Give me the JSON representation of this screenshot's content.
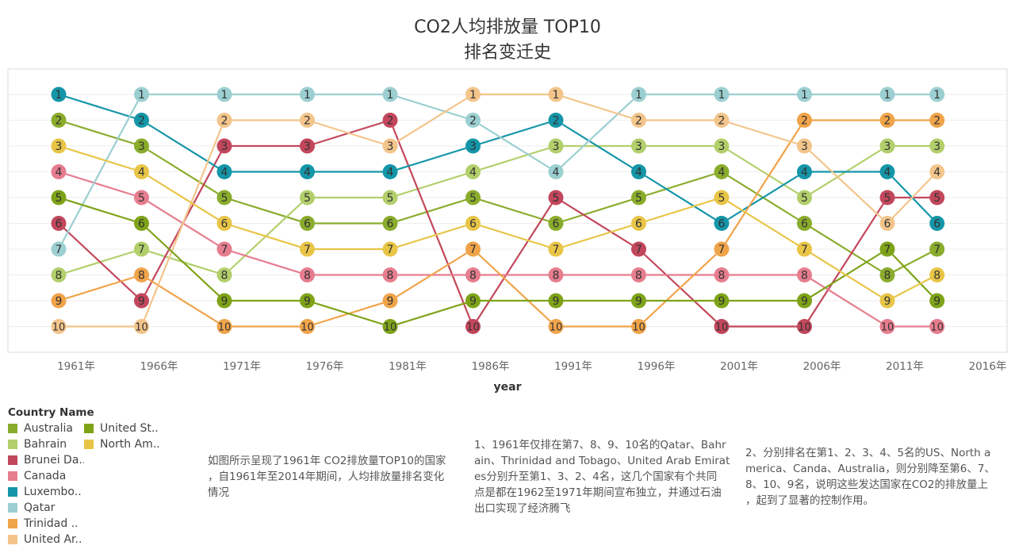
{
  "chart_data": {
    "type": "line",
    "title_line1": "CO2人均排放量 TOP10",
    "title_line2": "排名变迁史",
    "xlabel": "year",
    "x_ticks": [
      "1961年",
      "1966年",
      "1971年",
      "1976年",
      "1981年",
      "1986年",
      "1991年",
      "1996年",
      "2001年",
      "2006年",
      "2011年",
      "2016年"
    ],
    "years": [
      1961,
      1966,
      1971,
      1976,
      1981,
      1986,
      1991,
      1996,
      2001,
      2006,
      2011,
      2014
    ],
    "y_range": [
      1,
      10
    ],
    "y_reversed": true,
    "grid": true,
    "series": [
      {
        "name": "Australia",
        "color": "#8aac2c",
        "ranks": [
          2,
          3,
          5,
          6,
          6,
          5,
          6,
          5,
          4,
          6,
          8,
          7
        ]
      },
      {
        "name": "Bahrain",
        "color": "#b2cf6b",
        "ranks": [
          8,
          7,
          8,
          5,
          5,
          4,
          3,
          3,
          3,
          5,
          3,
          3
        ]
      },
      {
        "name": "Brunei Da..",
        "color": "#c2475c",
        "ranks": [
          6,
          9,
          3,
          3,
          2,
          10,
          5,
          7,
          10,
          10,
          5,
          5
        ]
      },
      {
        "name": "Canada",
        "color": "#e67d8e",
        "ranks": [
          4,
          5,
          7,
          8,
          8,
          8,
          8,
          8,
          8,
          8,
          10,
          10
        ]
      },
      {
        "name": "Luxembo..",
        "color": "#1496a8",
        "ranks": [
          1,
          2,
          4,
          4,
          4,
          3,
          2,
          4,
          6,
          4,
          4,
          6
        ]
      },
      {
        "name": "Qatar",
        "color": "#9ccfd1",
        "ranks": [
          7,
          1,
          1,
          1,
          1,
          2,
          4,
          1,
          1,
          1,
          1,
          1
        ]
      },
      {
        "name": "Trinidad ..",
        "color": "#f0a44a",
        "ranks": [
          9,
          8,
          10,
          10,
          9,
          7,
          10,
          10,
          7,
          2,
          2,
          2
        ]
      },
      {
        "name": "United Ar..",
        "color": "#f3c58b",
        "ranks": [
          10,
          10,
          2,
          2,
          3,
          1,
          1,
          2,
          2,
          3,
          6,
          4
        ]
      },
      {
        "name": "United St..",
        "color": "#7ea318",
        "ranks": [
          5,
          6,
          9,
          9,
          10,
          9,
          9,
          9,
          9,
          9,
          7,
          9
        ]
      },
      {
        "name": "North Am..",
        "color": "#e8c547",
        "ranks": [
          3,
          4,
          6,
          7,
          7,
          6,
          7,
          6,
          5,
          7,
          9,
          8
        ]
      }
    ]
  },
  "legend": {
    "title": "Country Name",
    "items": [
      {
        "label": "Australia",
        "color": "#8aac2c"
      },
      {
        "label": "United St..",
        "color": "#7ea318"
      },
      {
        "label": "Bahrain",
        "color": "#b2cf6b"
      },
      {
        "label": "North Am..",
        "color": "#e8c547"
      },
      {
        "label": "Brunei Da..",
        "color": "#c2475c"
      },
      {
        "label": "Canada",
        "color": "#e67d8e"
      },
      {
        "label": "Luxembo..",
        "color": "#1496a8"
      },
      {
        "label": "Qatar",
        "color": "#9ccfd1"
      },
      {
        "label": "Trinidad ..",
        "color": "#f0a44a"
      },
      {
        "label": "United Ar..",
        "color": "#f3c58b"
      }
    ]
  },
  "notes": {
    "intro": [
      "如图所示呈现了1961年 CO2排放量TOP10的国家",
      "，自1961年至2014年期间，人均排放量排名变化",
      "情况"
    ],
    "note1": [
      "1、1961年仅排在第7、8、9、10名的Qatar、Bahr",
      "ain、Thrinidad and Tobago、United Arab Emirat",
      "es分别升至第1、3、2、4名，这几个国家有个共同",
      "点是都在1962至1971年期间宣布独立，并通过石油",
      "出口实现了经济腾飞"
    ],
    "note2": [
      "2、分别排名在第1、2、3、4、5名的US、North a",
      "merica、Canda、Australia，则分别降至第6、7、",
      "8、10、9名，说明这些发达国家在CO2的排放量上",
      "，起到了显著的控制作用。"
    ]
  }
}
